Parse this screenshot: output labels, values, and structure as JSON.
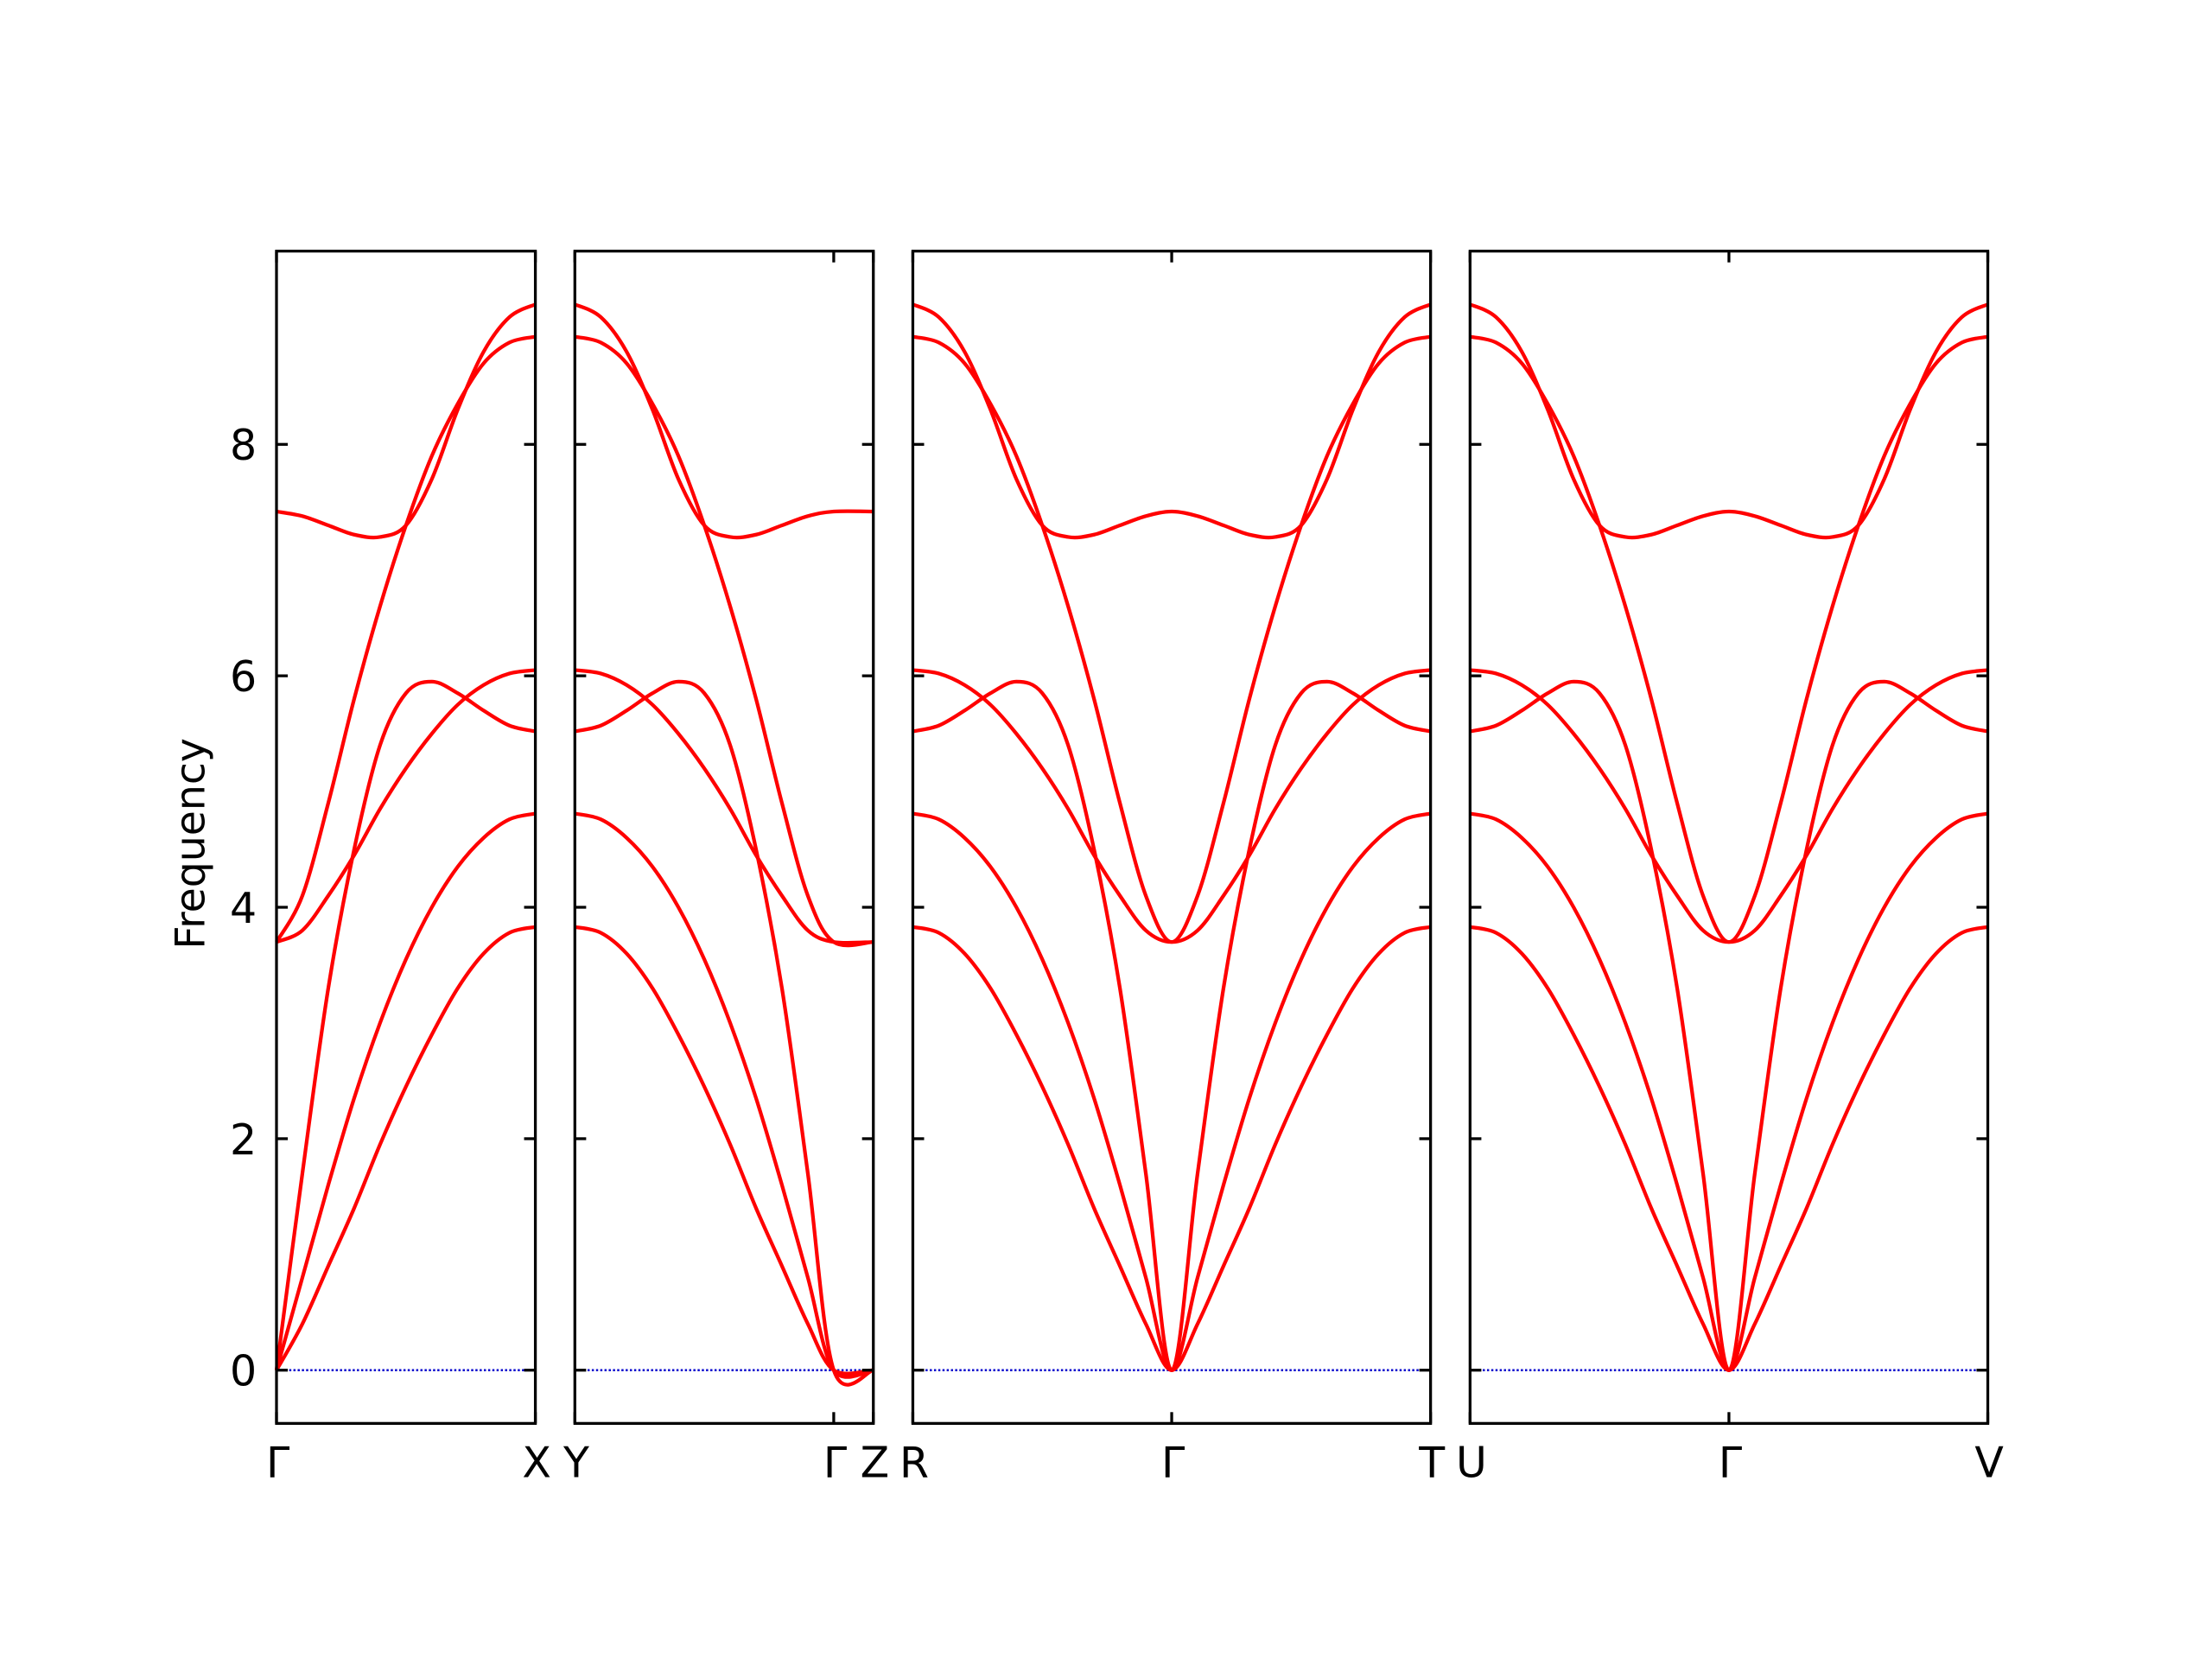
{
  "chart_data": {
    "type": "line",
    "ylabel": "Frequency",
    "ylim": [
      -0.46,
      9.67
    ],
    "yticks": [
      0,
      2,
      4,
      6,
      8
    ],
    "zero_line": {
      "value": 0,
      "color": "#0000cc"
    },
    "panels": [
      {
        "xlim": [
          0,
          1
        ],
        "xticks": [
          {
            "value": 0,
            "label": "Γ"
          },
          {
            "value": 1,
            "label": "X"
          }
        ],
        "x": [
          0,
          0.1,
          0.2,
          0.3,
          0.4,
          0.5,
          0.6,
          0.7,
          0.8,
          0.9,
          1
        ],
        "series": [
          {
            "color": "#ff0000",
            "values": [
              0,
              0.4,
              0.9,
              1.4,
              1.95,
              2.45,
              2.9,
              3.3,
              3.6,
              3.78,
              3.83
            ]
          },
          {
            "color": "#ff0000",
            "values": [
              0,
              0.8,
              1.6,
              2.35,
              3.0,
              3.55,
              4.0,
              4.35,
              4.6,
              4.76,
              4.81
            ]
          },
          {
            "color": "#ff0000",
            "values": [
              0,
              1.7,
              3.3,
              4.5,
              5.4,
              5.85,
              5.95,
              5.85,
              5.7,
              5.57,
              5.52
            ]
          },
          {
            "color": "#ff0000",
            "values": [
              3.7,
              3.8,
              4.1,
              4.45,
              4.85,
              5.2,
              5.5,
              5.75,
              5.92,
              6.02,
              6.05
            ]
          },
          {
            "color": "#ff0000",
            "values": [
              3.7,
              4.1,
              4.9,
              5.8,
              6.6,
              7.3,
              7.9,
              8.35,
              8.7,
              8.88,
              8.93
            ]
          },
          {
            "color": "#ff0000",
            "values": [
              7.42,
              7.38,
              7.3,
              7.22,
              7.2,
              7.3,
              7.7,
              8.3,
              8.8,
              9.1,
              9.21
            ]
          }
        ]
      },
      {
        "xlim": [
          0,
          1.153
        ],
        "xticks": [
          {
            "value": 0,
            "label": "Y"
          },
          {
            "value": 1,
            "label": "Γ"
          },
          {
            "value": 1.153,
            "label": "Z"
          }
        ],
        "x": [
          0,
          0.1,
          0.2,
          0.3,
          0.4,
          0.5,
          0.6,
          0.7,
          0.8,
          0.9,
          1,
          1.153
        ],
        "series": [
          {
            "color": "#ff0000",
            "values": [
              3.83,
              3.78,
              3.6,
              3.3,
              2.9,
              2.45,
              1.95,
              1.4,
              0.9,
              0.4,
              0,
              0
            ]
          },
          {
            "color": "#ff0000",
            "values": [
              4.81,
              4.76,
              4.6,
              4.35,
              4.0,
              3.55,
              3.0,
              2.35,
              1.6,
              0.8,
              0,
              0
            ]
          },
          {
            "color": "#ff0000",
            "values": [
              5.52,
              5.57,
              5.7,
              5.85,
              5.95,
              5.85,
              5.4,
              4.5,
              3.3,
              1.7,
              0,
              0
            ]
          },
          {
            "color": "#ff0000",
            "values": [
              6.05,
              6.02,
              5.92,
              5.75,
              5.5,
              5.2,
              4.85,
              4.45,
              4.1,
              3.8,
              3.7,
              3.7
            ]
          },
          {
            "color": "#ff0000",
            "values": [
              8.93,
              8.88,
              8.7,
              8.35,
              7.9,
              7.3,
              6.6,
              5.8,
              4.9,
              4.1,
              3.7,
              3.7
            ]
          },
          {
            "color": "#ff0000",
            "values": [
              9.21,
              9.1,
              8.8,
              8.3,
              7.7,
              7.3,
              7.2,
              7.22,
              7.3,
              7.38,
              7.42,
              7.42
            ]
          }
        ]
      },
      {
        "xlim": [
          0,
          2
        ],
        "xticks": [
          {
            "value": 0,
            "label": "R"
          },
          {
            "value": 1,
            "label": "Γ"
          },
          {
            "value": 2,
            "label": "T"
          }
        ],
        "x": [
          0,
          0.1,
          0.2,
          0.3,
          0.4,
          0.5,
          0.6,
          0.7,
          0.8,
          0.9,
          1,
          1.1,
          1.2,
          1.3,
          1.4,
          1.5,
          1.6,
          1.7,
          1.8,
          1.9,
          2
        ],
        "series": [
          {
            "color": "#ff0000",
            "values": [
              3.83,
              3.78,
              3.6,
              3.3,
              2.9,
              2.45,
              1.95,
              1.4,
              0.9,
              0.4,
              0,
              0.4,
              0.9,
              1.4,
              1.95,
              2.45,
              2.9,
              3.3,
              3.6,
              3.78,
              3.83
            ]
          },
          {
            "color": "#ff0000",
            "values": [
              4.81,
              4.76,
              4.6,
              4.35,
              4.0,
              3.55,
              3.0,
              2.35,
              1.6,
              0.8,
              0,
              0.8,
              1.6,
              2.35,
              3.0,
              3.55,
              4.0,
              4.35,
              4.6,
              4.76,
              4.81
            ]
          },
          {
            "color": "#ff0000",
            "values": [
              5.52,
              5.57,
              5.7,
              5.85,
              5.95,
              5.85,
              5.4,
              4.5,
              3.3,
              1.7,
              0,
              1.7,
              3.3,
              4.5,
              5.4,
              5.85,
              5.95,
              5.85,
              5.7,
              5.57,
              5.52
            ]
          },
          {
            "color": "#ff0000",
            "values": [
              6.05,
              6.02,
              5.92,
              5.75,
              5.5,
              5.2,
              4.85,
              4.45,
              4.1,
              3.8,
              3.7,
              3.8,
              4.1,
              4.45,
              4.85,
              5.2,
              5.5,
              5.75,
              5.92,
              6.02,
              6.05
            ]
          },
          {
            "color": "#ff0000",
            "values": [
              8.93,
              8.88,
              8.7,
              8.35,
              7.9,
              7.3,
              6.6,
              5.8,
              4.9,
              4.1,
              3.7,
              4.1,
              4.9,
              5.8,
              6.6,
              7.3,
              7.9,
              8.35,
              8.7,
              8.88,
              8.93
            ]
          },
          {
            "color": "#ff0000",
            "values": [
              9.21,
              9.1,
              8.8,
              8.3,
              7.7,
              7.3,
              7.2,
              7.22,
              7.3,
              7.38,
              7.42,
              7.38,
              7.3,
              7.22,
              7.2,
              7.3,
              7.7,
              8.3,
              8.8,
              9.1,
              9.21
            ]
          }
        ]
      },
      {
        "xlim": [
          0,
          2
        ],
        "xticks": [
          {
            "value": 0,
            "label": "U"
          },
          {
            "value": 1,
            "label": "Γ"
          },
          {
            "value": 2,
            "label": "V"
          }
        ],
        "x": [
          0,
          0.1,
          0.2,
          0.3,
          0.4,
          0.5,
          0.6,
          0.7,
          0.8,
          0.9,
          1,
          1.1,
          1.2,
          1.3,
          1.4,
          1.5,
          1.6,
          1.7,
          1.8,
          1.9,
          2
        ],
        "series": [
          {
            "color": "#ff0000",
            "values": [
              3.83,
              3.78,
              3.6,
              3.3,
              2.9,
              2.45,
              1.95,
              1.4,
              0.9,
              0.4,
              0,
              0.4,
              0.9,
              1.4,
              1.95,
              2.45,
              2.9,
              3.3,
              3.6,
              3.78,
              3.83
            ]
          },
          {
            "color": "#ff0000",
            "values": [
              4.81,
              4.76,
              4.6,
              4.35,
              4.0,
              3.55,
              3.0,
              2.35,
              1.6,
              0.8,
              0,
              0.8,
              1.6,
              2.35,
              3.0,
              3.55,
              4.0,
              4.35,
              4.6,
              4.76,
              4.81
            ]
          },
          {
            "color": "#ff0000",
            "values": [
              5.52,
              5.57,
              5.7,
              5.85,
              5.95,
              5.85,
              5.4,
              4.5,
              3.3,
              1.7,
              0,
              1.7,
              3.3,
              4.5,
              5.4,
              5.85,
              5.95,
              5.85,
              5.7,
              5.57,
              5.52
            ]
          },
          {
            "color": "#ff0000",
            "values": [
              6.05,
              6.02,
              5.92,
              5.75,
              5.5,
              5.2,
              4.85,
              4.45,
              4.1,
              3.8,
              3.7,
              3.8,
              4.1,
              4.45,
              4.85,
              5.2,
              5.5,
              5.75,
              5.92,
              6.02,
              6.05
            ]
          },
          {
            "color": "#ff0000",
            "values": [
              8.93,
              8.88,
              8.7,
              8.35,
              7.9,
              7.3,
              6.6,
              5.8,
              4.9,
              4.1,
              3.7,
              4.1,
              4.9,
              5.8,
              6.6,
              7.3,
              7.9,
              8.35,
              8.7,
              8.88,
              8.93
            ]
          },
          {
            "color": "#ff0000",
            "values": [
              9.21,
              9.1,
              8.8,
              8.3,
              7.7,
              7.3,
              7.2,
              7.22,
              7.3,
              7.38,
              7.42,
              7.38,
              7.3,
              7.22,
              7.2,
              7.3,
              7.7,
              8.3,
              8.8,
              9.1,
              9.21
            ]
          }
        ]
      }
    ]
  }
}
